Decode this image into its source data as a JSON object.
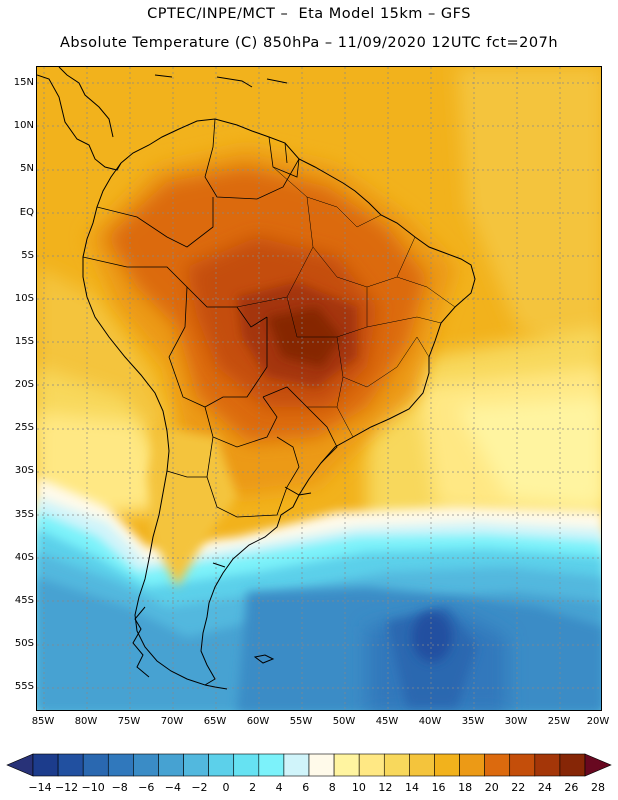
{
  "header": {
    "line1": "CPTEC/INPE/MCT –  Eta Model 15km – GFS",
    "line2": "Absolute Temperature (C) 850hPa – 11/09/2020 12UTC fct=207h"
  },
  "map": {
    "lat_labels": [
      "15N",
      "10N",
      "5N",
      "EQ",
      "5S",
      "10S",
      "15S",
      "20S",
      "25S",
      "30S",
      "35S",
      "40S",
      "45S",
      "50S",
      "55S"
    ],
    "lon_labels": [
      "85W",
      "80W",
      "75W",
      "70W",
      "65W",
      "60W",
      "55W",
      "50W",
      "45W",
      "40W",
      "35W",
      "30W",
      "25W",
      "20W"
    ]
  },
  "legend": {
    "labels": [
      "-14",
      "-12",
      "-10",
      "-8",
      "-6",
      "-4",
      "-2",
      "0",
      "2",
      "4",
      "6",
      "8",
      "10",
      "12",
      "14",
      "16",
      "18",
      "20",
      "22",
      "24",
      "26",
      "28"
    ],
    "colors": [
      "#1c3c8c",
      "#2150a0",
      "#2a68b0",
      "#3078bc",
      "#3a8cc6",
      "#46a2d2",
      "#52b8de",
      "#5cd0ea",
      "#66e2f2",
      "#7cf2fa",
      "#d0f4fa",
      "#fffaea",
      "#fff4a0",
      "#ffe884",
      "#f8d85c",
      "#f4c43c",
      "#f2b21c",
      "#ec9a16",
      "#dc6a0e",
      "#c44e0a",
      "#a43608",
      "#862606"
    ],
    "under_color": "#283278",
    "over_color": "#680820"
  }
}
